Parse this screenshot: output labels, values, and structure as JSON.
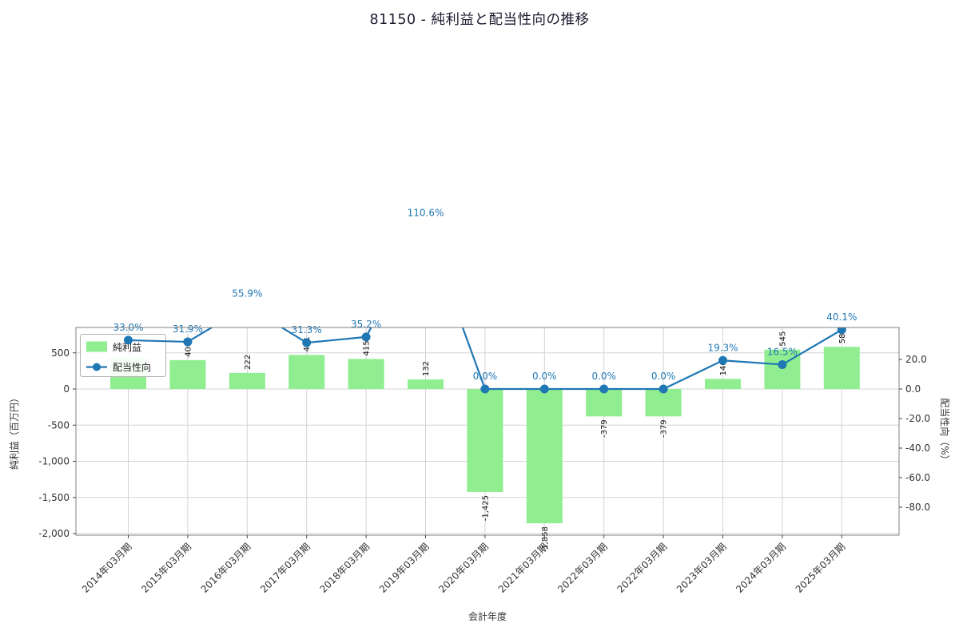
{
  "page": {
    "title": "81150 - 純利益と配当性向の推移"
  },
  "chart_data": {
    "type": "bar+line",
    "title": "81150 - 純利益と配当性向の推移",
    "xlabel": "会計年度",
    "categories": [
      "2014年03月期",
      "2015年03月期",
      "2016年03月期",
      "2017年03月期",
      "2018年03月期",
      "2019年03月期",
      "2020年03月期",
      "2021年03月期",
      "2022年03月期",
      "2022年03月期",
      "2023年03月期",
      "2024年03月期",
      "2025年03月期"
    ],
    "series": [
      {
        "name": "純利益",
        "type": "bar",
        "axis": "left",
        "color": "#90ee90",
        "values": [
          430,
          400,
          222,
          471,
          415,
          132,
          -1425,
          -1858,
          -379,
          -379,
          140,
          545,
          583
        ],
        "bar_labels": [
          "",
          "400",
          "222",
          "471",
          "415",
          "132",
          "-1,425",
          "-1,858",
          "-379",
          "-379",
          "140",
          "545",
          "583"
        ]
      },
      {
        "name": "配当性向",
        "type": "line",
        "axis": "right",
        "color": "#1f77b4",
        "values": [
          33.0,
          31.9,
          55.9,
          31.3,
          35.2,
          110.6,
          0.0,
          0.0,
          0.0,
          0.0,
          19.3,
          16.5,
          40.1
        ],
        "point_labels": [
          "33.0%",
          "31.9%",
          "55.9%",
          "31.3%",
          "35.2%",
          "110.6%",
          "0.0%",
          "0.0%",
          "0.0%",
          "0.0%",
          "19.3%",
          "16.5%",
          "40.1%"
        ]
      }
    ],
    "axes": {
      "left": {
        "label": "純利益（百万円）",
        "tick_values": [
          500,
          0,
          -500,
          -1000,
          -1500,
          -2000
        ],
        "tick_labels": [
          "500",
          "0",
          "-500",
          "-1,000",
          "-1,500",
          "-2,000"
        ],
        "range": [
          -2022,
          851
        ]
      },
      "right": {
        "label": "配当性向（%）",
        "tick_values": [
          20,
          0,
          -20,
          -40,
          -60,
          -80
        ],
        "tick_labels": [
          "20.0",
          "0.0",
          "-20.0",
          "-40.0",
          "-60.0",
          "-80.0"
        ],
        "range": [
          -98.9,
          41.6
        ]
      }
    },
    "legend": {
      "position": "upper-left",
      "items": [
        "純利益",
        "配当性向"
      ]
    },
    "grid": true
  },
  "colors": {
    "bar": "#90ee90",
    "line": "#1f77b4",
    "grid": "#d3d3d3",
    "spine": "#808080",
    "tick_text": "#333333",
    "annotation": "#1f77b4",
    "title": "#1a1a2e",
    "legend_border": "#b3b3b3"
  }
}
